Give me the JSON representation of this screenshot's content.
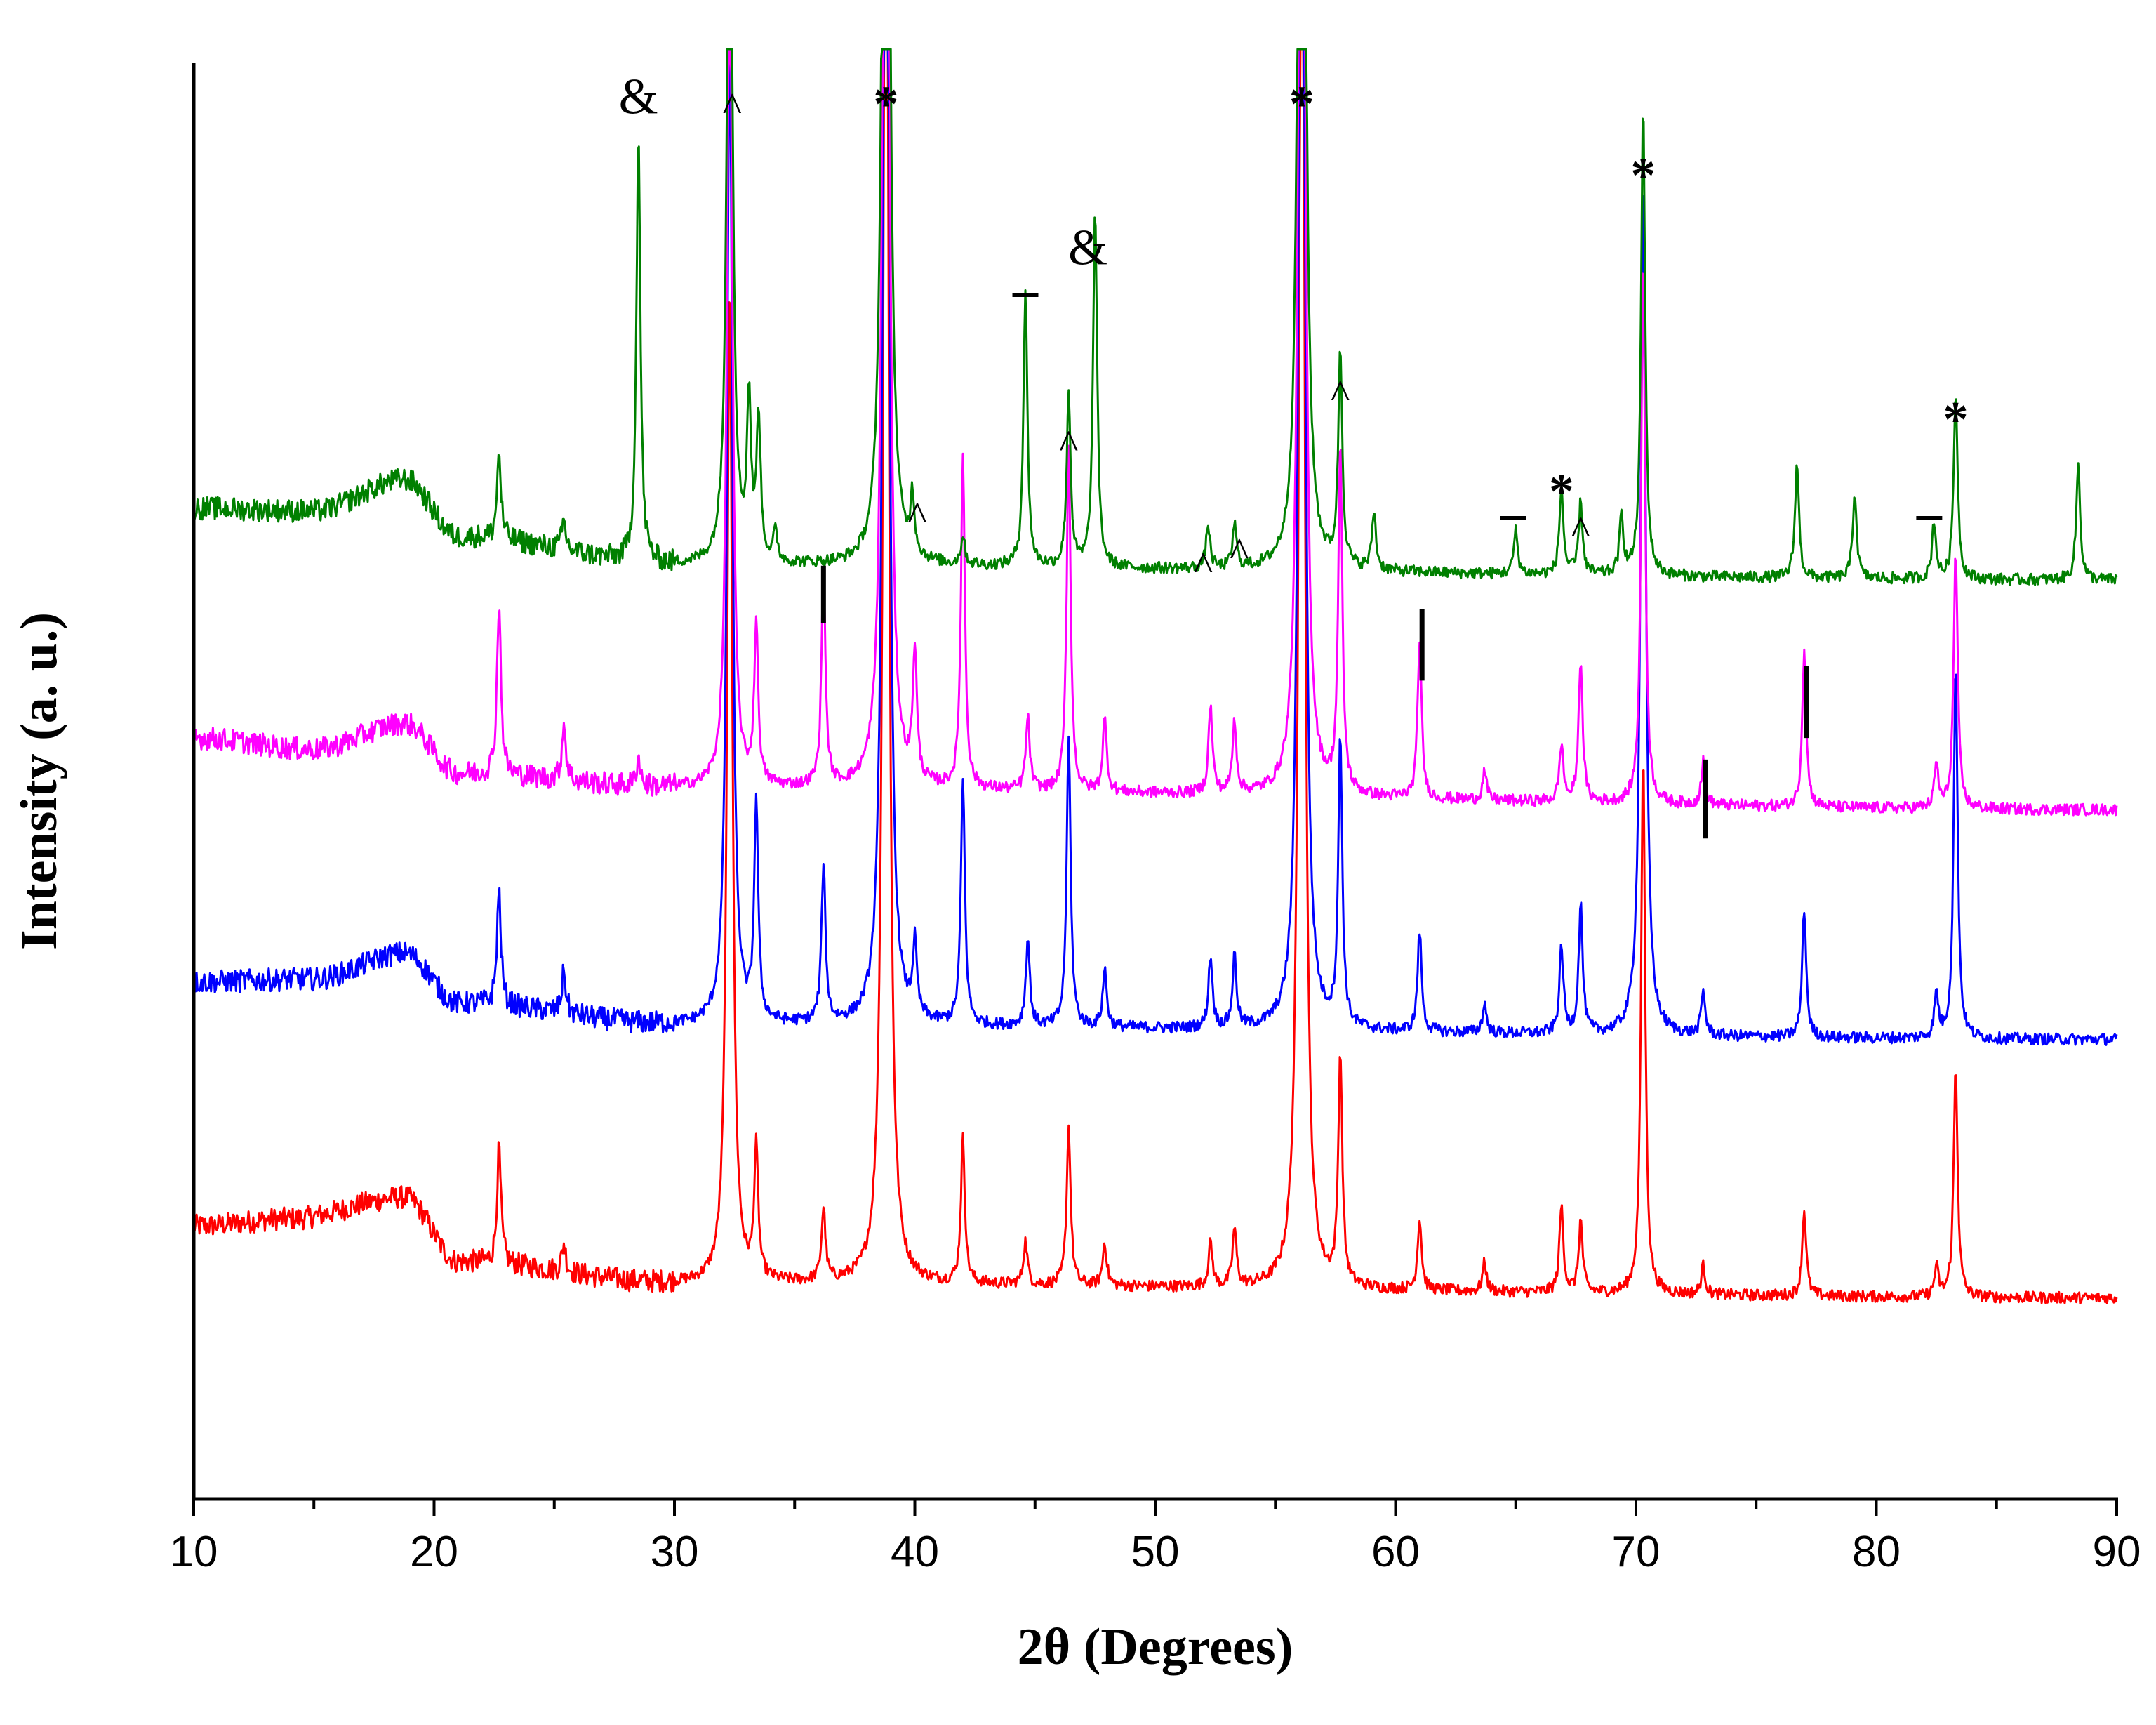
{
  "chart_data": {
    "type": "line",
    "title": "",
    "xlabel": "2θ (Degrees)",
    "ylabel": "Intensity (a. u.)",
    "xlim": [
      10,
      90
    ],
    "xticks": [
      10,
      20,
      30,
      40,
      50,
      60,
      70,
      80,
      90
    ],
    "ylim": [
      0,
      100
    ],
    "y_ticks_shown": false,
    "grid": false,
    "legend": null,
    "series": [
      {
        "name": "red pattern (bottom)",
        "color": "#ff0000",
        "baseline": 14,
        "baseline_profile": [
          [
            10,
            5
          ],
          [
            14,
            5.5
          ],
          [
            18.8,
            7
          ],
          [
            21,
            2.5
          ],
          [
            30,
            1
          ],
          [
            90,
            0
          ]
        ],
        "peaks": [
          {
            "x": 22.7,
            "h": 8
          },
          {
            "x": 25.4,
            "h": 2
          },
          {
            "x": 32.3,
            "h": 70
          },
          {
            "x": 33.4,
            "h": 9
          },
          {
            "x": 36.2,
            "h": 5
          },
          {
            "x": 38.8,
            "h": 120
          },
          {
            "x": 42.0,
            "h": 10
          },
          {
            "x": 44.6,
            "h": 3
          },
          {
            "x": 46.4,
            "h": 11
          },
          {
            "x": 47.9,
            "h": 3
          },
          {
            "x": 52.3,
            "h": 3
          },
          {
            "x": 53.3,
            "h": 4
          },
          {
            "x": 56.1,
            "h": 120
          },
          {
            "x": 57.7,
            "h": 16
          },
          {
            "x": 61.0,
            "h": 5
          },
          {
            "x": 63.7,
            "h": 2
          },
          {
            "x": 66.9,
            "h": 6
          },
          {
            "x": 67.7,
            "h": 5
          },
          {
            "x": 70.3,
            "h": 38
          },
          {
            "x": 72.8,
            "h": 2
          },
          {
            "x": 77.0,
            "h": 6
          },
          {
            "x": 82.5,
            "h": 2
          },
          {
            "x": 83.3,
            "h": 16
          }
        ]
      },
      {
        "name": "blue pattern",
        "color": "#0000ff",
        "baseline": 32,
        "baseline_profile": [
          [
            10,
            4
          ],
          [
            15,
            4.2
          ],
          [
            18.8,
            6
          ],
          [
            21,
            2.5
          ],
          [
            30,
            1
          ],
          [
            90,
            0
          ]
        ],
        "peaks": [
          {
            "x": 22.7,
            "h": 8
          },
          {
            "x": 25.4,
            "h": 3
          },
          {
            "x": 32.3,
            "h": 70
          },
          {
            "x": 33.4,
            "h": 15
          },
          {
            "x": 36.2,
            "h": 11
          },
          {
            "x": 38.8,
            "h": 120
          },
          {
            "x": 40.0,
            "h": 5
          },
          {
            "x": 42.0,
            "h": 17
          },
          {
            "x": 44.7,
            "h": 6
          },
          {
            "x": 46.4,
            "h": 20
          },
          {
            "x": 47.9,
            "h": 4
          },
          {
            "x": 52.3,
            "h": 5
          },
          {
            "x": 53.3,
            "h": 5
          },
          {
            "x": 56.1,
            "h": 120
          },
          {
            "x": 57.7,
            "h": 20
          },
          {
            "x": 61.0,
            "h": 7
          },
          {
            "x": 63.7,
            "h": 2
          },
          {
            "x": 66.9,
            "h": 6
          },
          {
            "x": 67.7,
            "h": 9
          },
          {
            "x": 70.3,
            "h": 60
          },
          {
            "x": 72.8,
            "h": 3
          },
          {
            "x": 77.0,
            "h": 9
          },
          {
            "x": 82.5,
            "h": 3
          },
          {
            "x": 83.3,
            "h": 26
          }
        ]
      },
      {
        "name": "magenta pattern",
        "color": "#ff00ff",
        "baseline": 48,
        "baseline_profile": [
          [
            10,
            5
          ],
          [
            15,
            4.2
          ],
          [
            18.8,
            6
          ],
          [
            21,
            2.5
          ],
          [
            30,
            1.5
          ],
          [
            90,
            0
          ]
        ],
        "peaks": [
          {
            "x": 22.7,
            "h": 12
          },
          {
            "x": 25.4,
            "h": 4
          },
          {
            "x": 28.5,
            "h": 2
          },
          {
            "x": 32.3,
            "h": 60
          },
          {
            "x": 33.4,
            "h": 11
          },
          {
            "x": 36.2,
            "h": 15
          },
          {
            "x": 38.8,
            "h": 120
          },
          {
            "x": 40.0,
            "h": 9
          },
          {
            "x": 42.0,
            "h": 23
          },
          {
            "x": 44.7,
            "h": 5
          },
          {
            "x": 46.4,
            "h": 24
          },
          {
            "x": 47.9,
            "h": 5
          },
          {
            "x": 52.3,
            "h": 6
          },
          {
            "x": 53.3,
            "h": 5
          },
          {
            "x": 56.1,
            "h": 120
          },
          {
            "x": 57.7,
            "h": 24
          },
          {
            "x": 61.0,
            "h": 11
          },
          {
            "x": 63.7,
            "h": 2
          },
          {
            "x": 66.9,
            "h": 4
          },
          {
            "x": 67.7,
            "h": 10
          },
          {
            "x": 70.3,
            "h": 38
          },
          {
            "x": 72.8,
            "h": 3
          },
          {
            "x": 77.0,
            "h": 11
          },
          {
            "x": 82.5,
            "h": 3
          },
          {
            "x": 83.3,
            "h": 18
          }
        ]
      },
      {
        "name": "green pattern (top)",
        "color": "#008000",
        "baseline": 64,
        "baseline_profile": [
          [
            10,
            5
          ],
          [
            15,
            4.8
          ],
          [
            18.8,
            7
          ],
          [
            21,
            3
          ],
          [
            30,
            1
          ],
          [
            90,
            0
          ]
        ],
        "peaks": [
          {
            "x": 22.7,
            "h": 6
          },
          {
            "x": 25.4,
            "h": 2
          },
          {
            "x": 28.5,
            "h": 30
          },
          {
            "x": 32.3,
            "h": 60
          },
          {
            "x": 33.1,
            "h": 11
          },
          {
            "x": 33.5,
            "h": 10
          },
          {
            "x": 34.2,
            "h": 2
          },
          {
            "x": 38.8,
            "h": 120
          },
          {
            "x": 39.9,
            "h": 4
          },
          {
            "x": 42.0,
            "h": 2
          },
          {
            "x": 44.6,
            "h": 19
          },
          {
            "x": 46.4,
            "h": 12
          },
          {
            "x": 47.5,
            "h": 25
          },
          {
            "x": 52.2,
            "h": 3
          },
          {
            "x": 53.3,
            "h": 3
          },
          {
            "x": 56.1,
            "h": 120
          },
          {
            "x": 57.7,
            "h": 15
          },
          {
            "x": 59.1,
            "h": 4
          },
          {
            "x": 65.0,
            "h": 3
          },
          {
            "x": 66.9,
            "h": 6
          },
          {
            "x": 67.7,
            "h": 5
          },
          {
            "x": 69.4,
            "h": 4
          },
          {
            "x": 70.3,
            "h": 33
          },
          {
            "x": 76.7,
            "h": 8
          },
          {
            "x": 79.1,
            "h": 6
          },
          {
            "x": 82.4,
            "h": 4
          },
          {
            "x": 83.3,
            "h": 13
          },
          {
            "x": 88.4,
            "h": 8
          }
        ]
      }
    ],
    "annotations": [
      {
        "text": "&",
        "type": "amp",
        "x": 28.5,
        "level": 96.5
      },
      {
        "text": "^",
        "type": "caret",
        "x": 32.4,
        "level": 96
      },
      {
        "text": "*",
        "type": "ast",
        "x": 38.8,
        "level": 96
      },
      {
        "text": "*",
        "type": "ast",
        "x": 56.1,
        "level": 96
      },
      {
        "text": "*",
        "type": "ast",
        "x": 70.3,
        "level": 91
      },
      {
        "text": "&",
        "type": "amp",
        "x": 47.2,
        "level": 86
      },
      {
        "text": "-",
        "type": "dash",
        "x": 44.6,
        "level": 83
      },
      {
        "text": "^",
        "type": "caret",
        "x": 46.4,
        "level": 72.5
      },
      {
        "text": "^",
        "type": "caret",
        "x": 40.1,
        "level": 67.5
      },
      {
        "text": "^",
        "type": "caret",
        "x": 57.7,
        "level": 76
      },
      {
        "text": "^",
        "type": "caret",
        "x": 52.0,
        "level": 64
      },
      {
        "text": "^",
        "type": "caret",
        "x": 53.5,
        "level": 65
      },
      {
        "text": "-",
        "type": "dash",
        "x": 64.9,
        "level": 67.5
      },
      {
        "text": "*",
        "type": "ast",
        "x": 66.9,
        "level": 69
      },
      {
        "text": "^",
        "type": "caret",
        "x": 67.7,
        "level": 66.5
      },
      {
        "text": "*",
        "type": "ast",
        "x": 83.3,
        "level": 74
      },
      {
        "text": "-",
        "type": "dash",
        "x": 82.2,
        "level": 67.5
      },
      {
        "text": "|",
        "type": "bar",
        "x": 36.2,
        "y_from": 61,
        "y_to": 65
      },
      {
        "text": "|",
        "type": "bar",
        "x": 61.1,
        "y_from": 57,
        "y_to": 62
      },
      {
        "text": "|",
        "type": "bar",
        "x": 72.9,
        "y_from": 46,
        "y_to": 51.5
      },
      {
        "text": "|",
        "type": "bar",
        "x": 77.1,
        "y_from": 53,
        "y_to": 58
      }
    ]
  }
}
